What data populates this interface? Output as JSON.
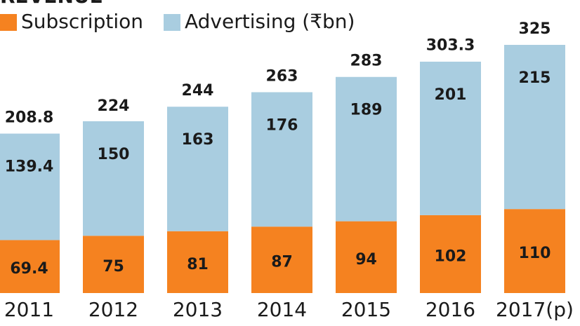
{
  "chart_data": {
    "type": "stacked-bar",
    "title": "REVENUE",
    "categories": [
      "2011",
      "2012",
      "2013",
      "2014",
      "2015",
      "2016",
      "2017(p)"
    ],
    "series": [
      {
        "name": "Subscription",
        "color": "#f58220",
        "values": [
          69.4,
          75,
          81,
          87,
          94,
          102,
          110
        ]
      },
      {
        "name": "Advertising (₹bn)",
        "color": "#a9cde0",
        "values": [
          139.4,
          150,
          163,
          176,
          189,
          201,
          215
        ]
      }
    ],
    "totals": [
      208.8,
      224,
      244,
      263,
      283,
      303.3,
      325
    ]
  }
}
